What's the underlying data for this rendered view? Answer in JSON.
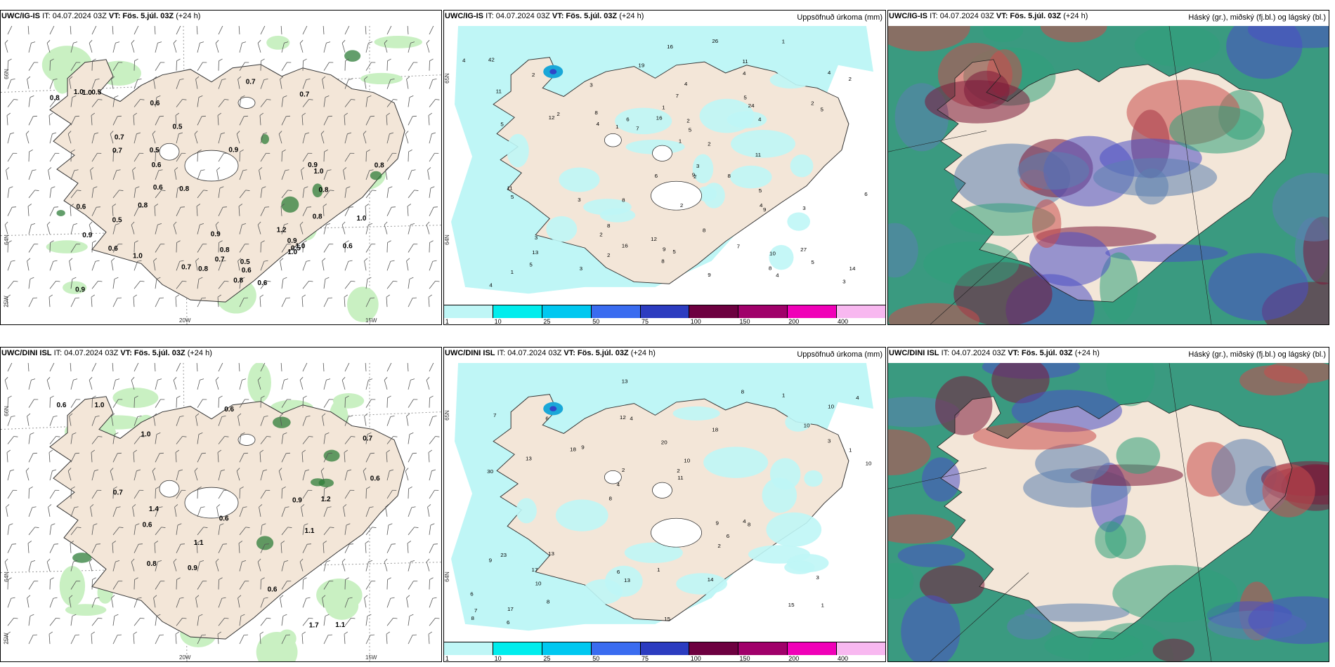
{
  "colors": {
    "land": "#f3e6d8",
    "rain": "#bff6f6",
    "green_light": "#c9f0c2",
    "green_dark": "#2f7d3a",
    "cloud_high": "#7b1a3a",
    "cloud_mid": "#4a4fc4",
    "cloud_low": "#2fa07a"
  },
  "rows": [
    {
      "model": "UWC/IG-IS",
      "panels": [
        {
          "type": "wind",
          "title_model": "UWC/IG-IS",
          "title_it": "IT: 04.07.2024 03Z",
          "title_vt": "VT: Fös. 5.júl. 03Z",
          "title_lead": "(+24 h)",
          "right_title": "",
          "lat_labels": [
            "66N",
            "64N",
            "25W"
          ],
          "lon_labels": [
            "20W",
            "15W"
          ],
          "values": [
            "0.7",
            "0.8",
            "0.9",
            "0.8",
            "0.8",
            "0.9",
            "0.7",
            "0.6",
            "0.9",
            "0.7",
            "0.5",
            "0.6",
            "0.8",
            "0.6",
            "0.7",
            "0.6",
            "0.9",
            "0.5",
            "1.0",
            "1.0",
            "0.5",
            "0.8",
            "0.7",
            "0.6",
            "0.5",
            "1.0",
            "0.7",
            "0.8",
            "0.6",
            "0.5",
            "1.0",
            "1.2",
            "0.8",
            "0.9",
            "1.0",
            "0.5",
            "1.0",
            "1.0",
            "0.8",
            "0.8",
            "0.9",
            "0.6",
            "0.6"
          ]
        },
        {
          "type": "precip",
          "title_model": "UWC/IG-IS",
          "title_it": "IT: 04.07.2024 03Z",
          "title_vt": "VT: Fös. 5.júl. 03Z",
          "title_lead": "(+24 h)",
          "right_title": "Uppsöfnuð úrkoma (mm)",
          "lat_labels": [
            "65N",
            "64N"
          ],
          "values": [
            "1",
            "3",
            "3",
            "2",
            "19",
            "26",
            "27",
            "11",
            "10",
            "2",
            "3",
            "4",
            "16",
            "16",
            "7",
            "8",
            "4",
            "5",
            "6",
            "2",
            "4",
            "5",
            "8",
            "8",
            "9",
            "4",
            "6",
            "7",
            "5",
            "8",
            "5",
            "8",
            "4",
            "4",
            "9",
            "9",
            "9",
            "4",
            "5",
            "12",
            "12",
            "8",
            "3",
            "2",
            "11",
            "1",
            "1",
            "5",
            "6",
            "14",
            "11",
            "16",
            "42",
            "8",
            "3",
            "2",
            "2",
            "7",
            "2",
            "5",
            "5",
            "5",
            "24",
            "4",
            "4",
            "11",
            "1",
            "13",
            "3",
            "2",
            "2",
            "2",
            "1",
            "3"
          ],
          "colorbar": [
            "1",
            "10",
            "25",
            "50",
            "75",
            "100",
            "150",
            "200",
            "400"
          ]
        },
        {
          "type": "cloud",
          "title_model": "UWC/IG-IS",
          "title_it": "IT: 04.07.2024 03Z",
          "title_vt": "VT: Fös. 5.júl. 03Z",
          "title_lead": "(+24 h)",
          "right_title": "Háský (gr.), miðský (fj.bl.) og lágský (bl.)"
        }
      ]
    },
    {
      "model": "UWC/DINI ISL",
      "panels": [
        {
          "type": "wind",
          "title_model": "UWC/DINI ISL",
          "title_it": "IT: 04.07.2024 03Z",
          "title_vt": "VT: Fös. 5.júl. 03Z",
          "title_lead": "(+24 h)",
          "right_title": "",
          "lat_labels": [
            "66N",
            "64N",
            "25W"
          ],
          "lon_labels": [
            "20W",
            "15W"
          ],
          "values": [
            "1.1",
            "0.7",
            "1.0",
            "1.1",
            "1.1",
            "1.0",
            "0.9",
            "0.6",
            "0.8",
            "0.9",
            "1.2",
            "0.6",
            "0.6",
            "1.7",
            "1.4",
            "0.6",
            "0.6",
            "0.6",
            "0.7"
          ]
        },
        {
          "type": "precip",
          "title_model": "UWC/DINI ISL",
          "title_it": "IT: 04.07.2024 03Z",
          "title_vt": "VT: Fös. 5.júl. 03Z",
          "title_lead": "(+24 h)",
          "right_title": "Uppsöfnuð úrkoma (mm)",
          "lat_labels": [
            "65N",
            "64N"
          ],
          "values": [
            "1",
            "30",
            "10",
            "8",
            "18",
            "17",
            "12",
            "20",
            "23",
            "9",
            "6",
            "10",
            "4",
            "10",
            "8",
            "7",
            "13",
            "10",
            "9",
            "3",
            "4",
            "6",
            "2",
            "6",
            "8",
            "13",
            "15",
            "3",
            "4",
            "15",
            "18",
            "13",
            "2",
            "8",
            "1",
            "2",
            "7",
            "13",
            "11",
            "9",
            "10",
            "4",
            "6",
            "14",
            "17",
            "6",
            "8",
            "1",
            "1"
          ],
          "colorbar": [
            "1",
            "10",
            "25",
            "50",
            "75",
            "100",
            "150",
            "200",
            "400"
          ]
        },
        {
          "type": "cloud",
          "title_model": "UWC/DINI ISL",
          "title_it": "IT: 04.07.2024 03Z",
          "title_vt": "VT: Fös. 5.júl. 03Z",
          "title_lead": "(+24 h)",
          "right_title": "Háský (gr.), miðský (fj.bl.) og lágský (bl.)"
        }
      ]
    }
  ]
}
